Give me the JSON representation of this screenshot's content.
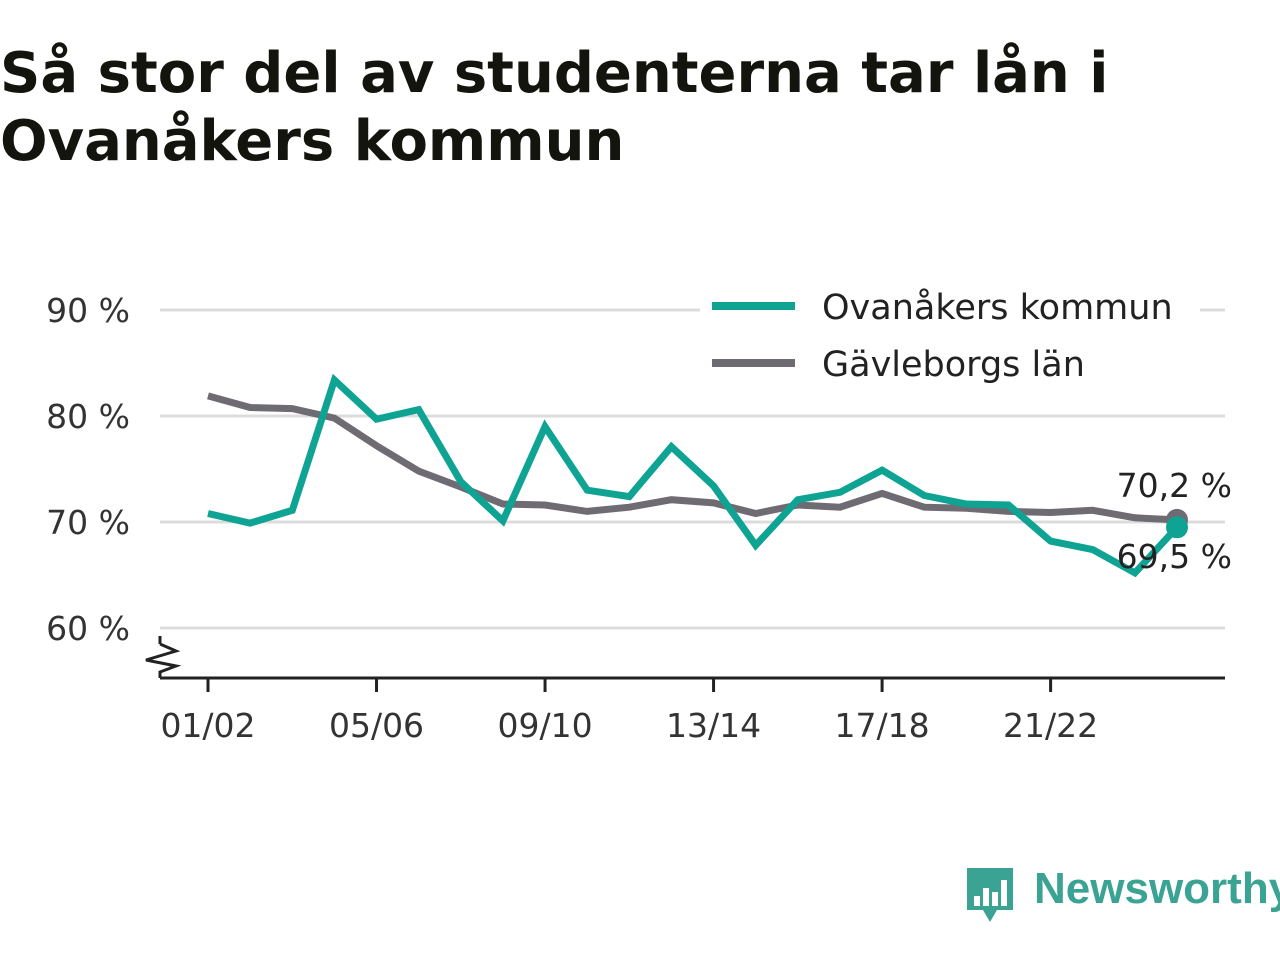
{
  "title": "Så stor del av studenterna tar lån i Ovanåkers kommun",
  "brand": {
    "name": "Newsworthy",
    "color": "#3aa394",
    "icon": "bar-chart-speech-icon"
  },
  "chart_data": {
    "type": "line",
    "title": "Så stor del av studenterna tar lån i Ovanåkers kommun",
    "xlabel": "",
    "ylabel": "",
    "ylim": [
      55,
      92
    ],
    "y_ticks": [
      60,
      70,
      80,
      90
    ],
    "y_tick_labels": [
      "60 %",
      "70 %",
      "80 %",
      "90 %"
    ],
    "y_axis_break": true,
    "grid": true,
    "legend_position": "top-right",
    "x": [
      "01/02",
      "02/03",
      "03/04",
      "04/05",
      "05/06",
      "06/07",
      "07/08",
      "08/09",
      "09/10",
      "10/11",
      "11/12",
      "12/13",
      "13/14",
      "14/15",
      "15/16",
      "16/17",
      "17/18",
      "18/19",
      "19/20",
      "20/21",
      "21/22",
      "22/23",
      "23/24",
      "24/25"
    ],
    "x_tick_labels": [
      "01/02",
      "05/06",
      "09/10",
      "13/14",
      "17/18",
      "21/22"
    ],
    "series": [
      {
        "name": "Ovanåkers kommun",
        "color": "#0fa394",
        "values": [
          70.8,
          69.9,
          71.1,
          83.4,
          79.7,
          80.6,
          73.8,
          70.1,
          79.0,
          73.0,
          72.4,
          77.1,
          73.4,
          67.8,
          72.1,
          72.8,
          74.9,
          72.5,
          71.7,
          71.6,
          68.2,
          67.4,
          65.2,
          69.5
        ],
        "end_label": "69,5 %"
      },
      {
        "name": "Gävleborgs län",
        "color": "#6e6c72",
        "values": [
          81.9,
          80.8,
          80.7,
          79.8,
          77.2,
          74.8,
          73.3,
          71.7,
          71.6,
          71.0,
          71.4,
          72.1,
          71.8,
          70.8,
          71.6,
          71.4,
          72.7,
          71.4,
          71.3,
          71.0,
          70.9,
          71.1,
          70.4,
          70.2
        ],
        "end_label": "70,2 %"
      }
    ]
  }
}
